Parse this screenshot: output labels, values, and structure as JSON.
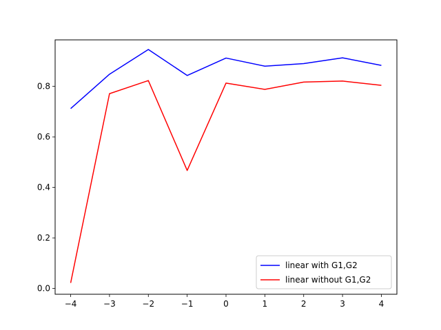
{
  "chart_data": {
    "type": "line",
    "title": "",
    "xlabel": "",
    "ylabel": "",
    "x": [
      -4,
      -3,
      -2,
      -1,
      0,
      1,
      2,
      3,
      4
    ],
    "xlim": [
      -4.4,
      4.4
    ],
    "ylim": [
      -0.023,
      0.984
    ],
    "xticks": [
      -4,
      -3,
      -2,
      -1,
      0,
      1,
      2,
      3,
      4
    ],
    "xtick_labels": [
      "−4",
      "−3",
      "−2",
      "−1",
      "0",
      "1",
      "2",
      "3",
      "4"
    ],
    "yticks": [
      0.0,
      0.2,
      0.4,
      0.6,
      0.8
    ],
    "ytick_labels": [
      "0.0",
      "0.2",
      "0.4",
      "0.6",
      "0.8"
    ],
    "grid": false,
    "legend_position": "lower-right",
    "series": [
      {
        "name": "linear with G1,G2",
        "color": "#0000ff",
        "values": [
          0.712,
          0.848,
          0.946,
          0.843,
          0.912,
          0.88,
          0.89,
          0.913,
          0.883
        ]
      },
      {
        "name": "linear without G1,G2",
        "color": "#ff0000",
        "values": [
          0.022,
          0.771,
          0.823,
          0.467,
          0.813,
          0.788,
          0.817,
          0.821,
          0.804
        ]
      }
    ]
  }
}
